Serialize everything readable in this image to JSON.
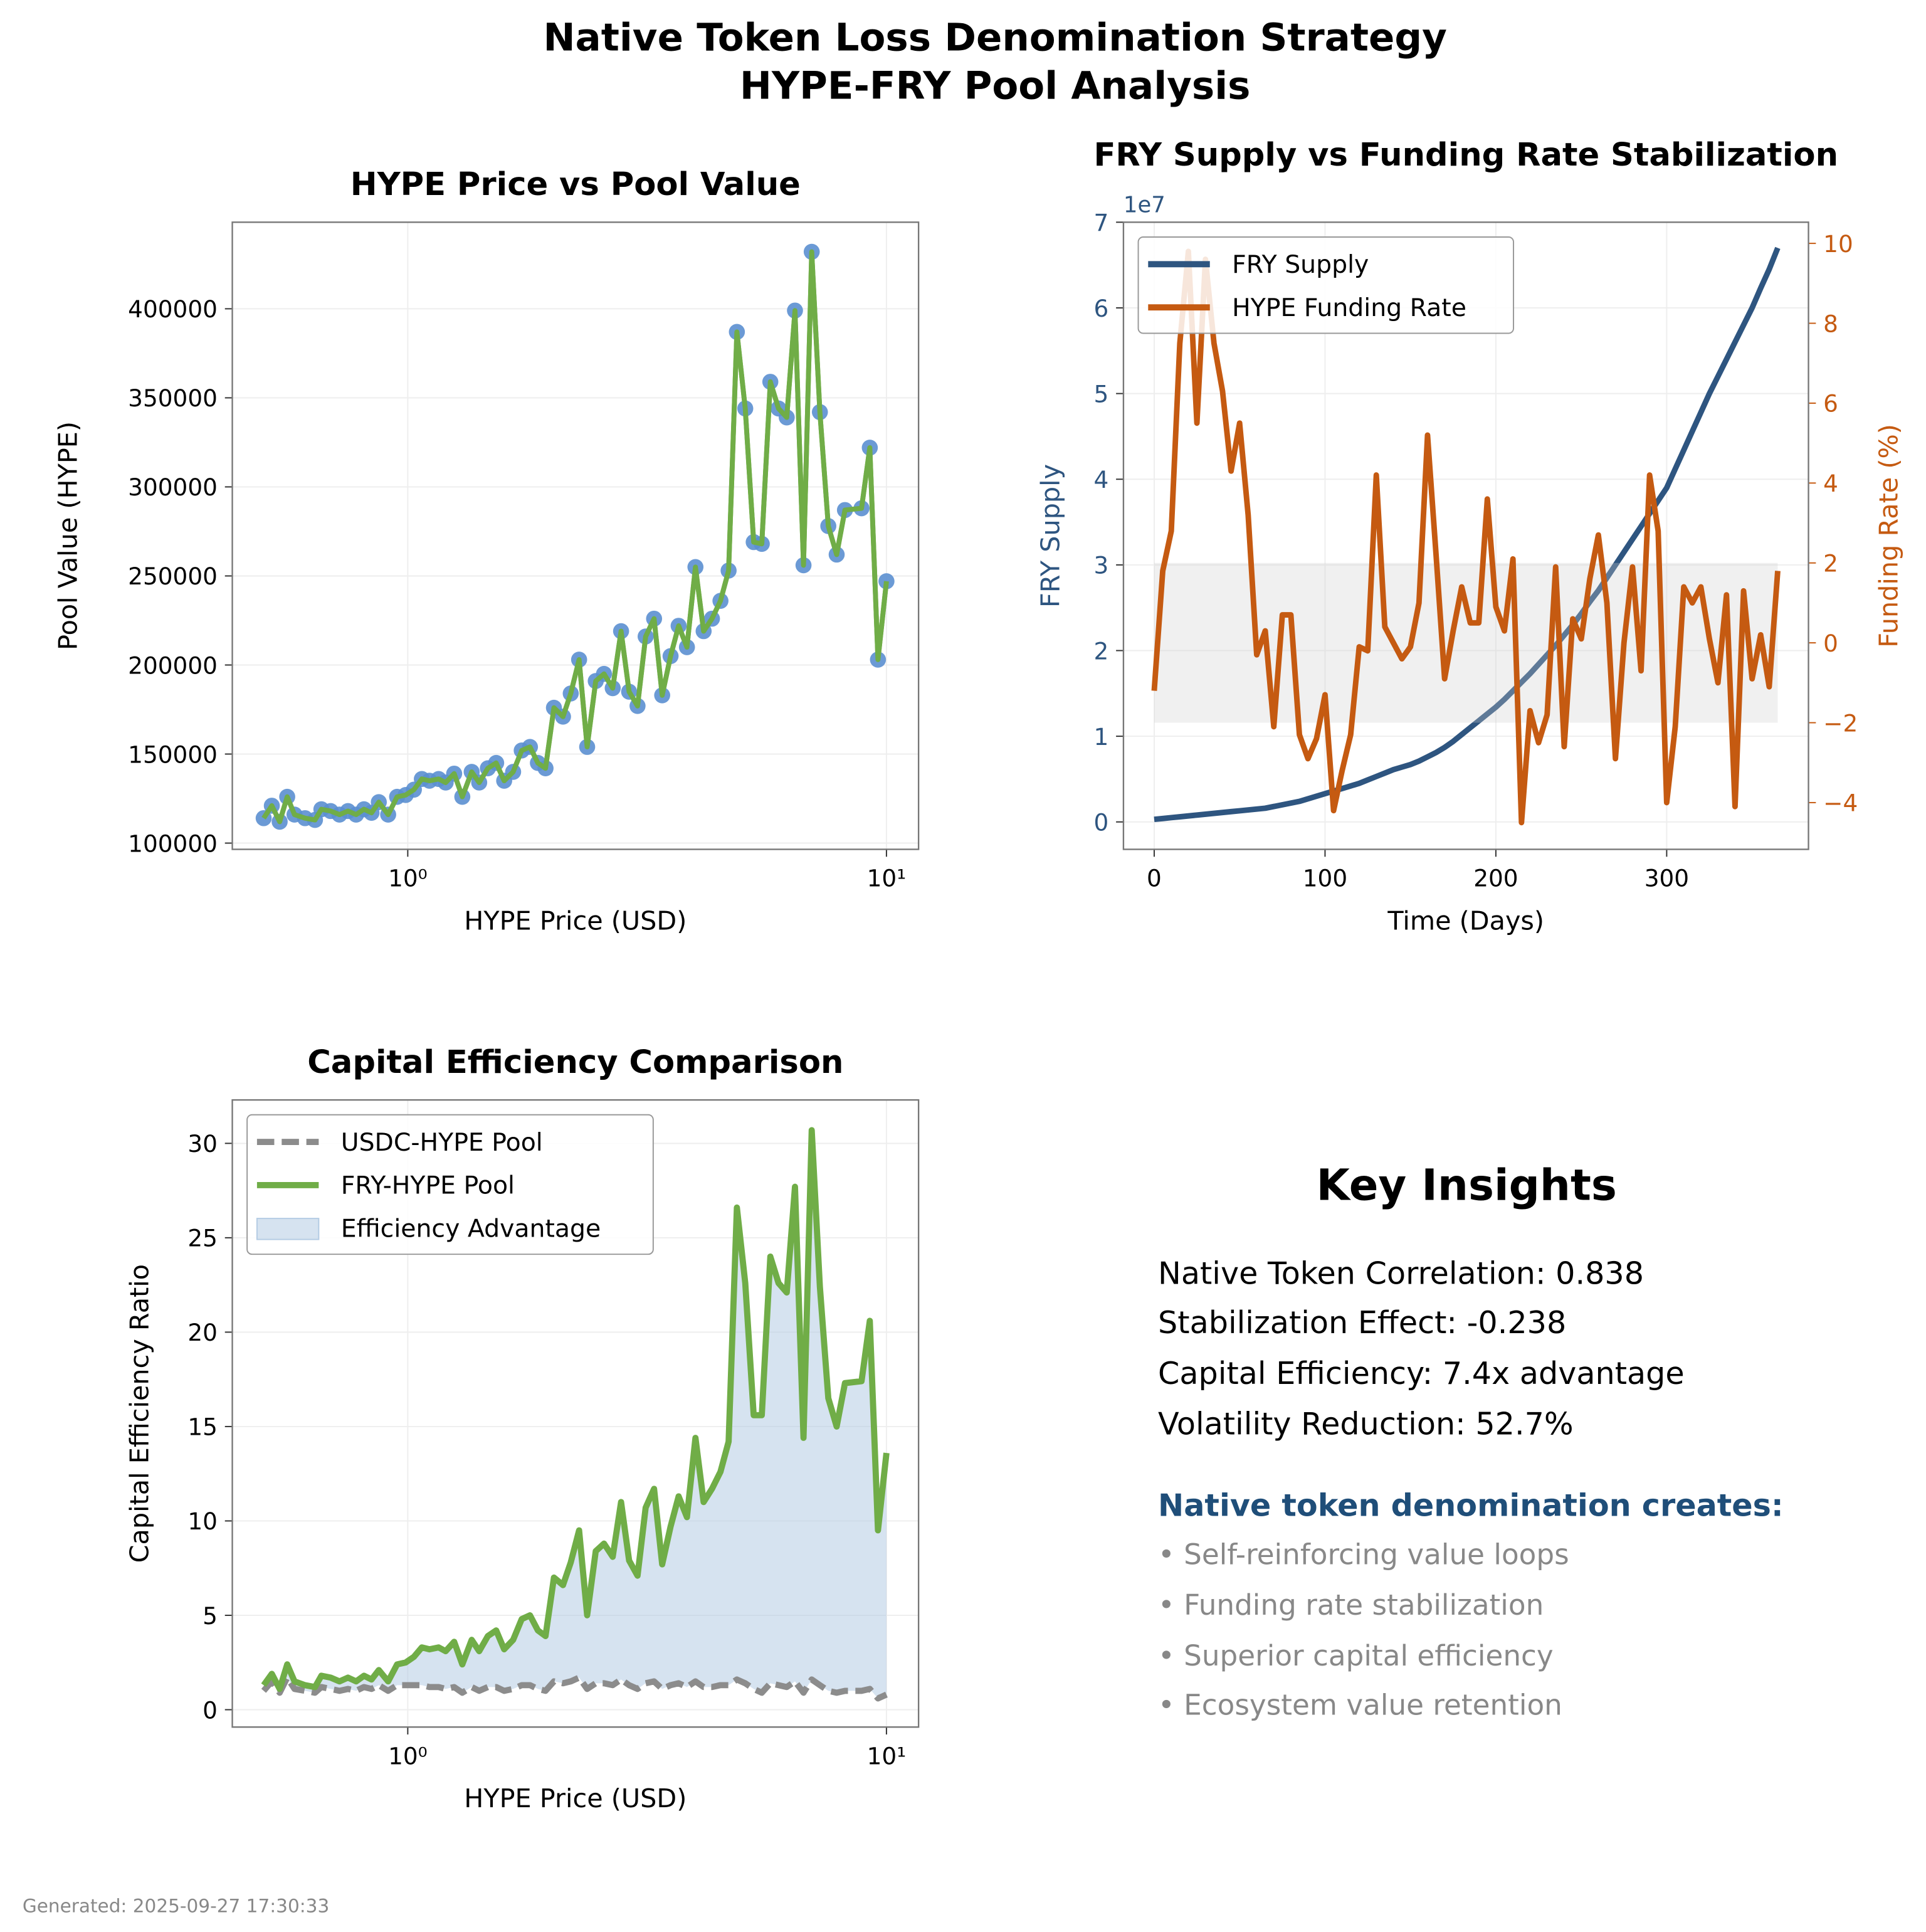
{
  "figure": {
    "title": "Native Token Loss Denomination Strategy",
    "subtitle": "HYPE-FRY Pool Analysis",
    "footer": "Generated: 2025-09-27 17:30:33"
  },
  "chart_data": [
    {
      "type": "scatter",
      "title": "HYPE Price vs Pool Value",
      "xlabel": "HYPE Price (USD)",
      "ylabel": "Pool Value (HYPE)",
      "xscale": "log",
      "xlim": [
        0.43,
        11.67
      ],
      "ylim": [
        96500,
        448600
      ],
      "xticks": [
        {
          "value": 1,
          "label": "10⁰"
        },
        {
          "value": 10,
          "label": "10¹"
        }
      ],
      "yticks": [
        100000,
        150000,
        200000,
        250000,
        300000,
        350000,
        400000
      ],
      "grid": true,
      "line_color": "#70ad47",
      "marker_color": "#5b8fd0",
      "x": [
        0.5,
        0.52,
        0.54,
        0.56,
        0.58,
        0.61,
        0.64,
        0.66,
        0.69,
        0.72,
        0.75,
        0.78,
        0.81,
        0.84,
        0.87,
        0.91,
        0.95,
        0.99,
        1.03,
        1.07,
        1.11,
        1.16,
        1.2,
        1.25,
        1.3,
        1.36,
        1.41,
        1.47,
        1.53,
        1.59,
        1.66,
        1.73,
        1.8,
        1.87,
        1.94,
        2.02,
        2.11,
        2.19,
        2.28,
        2.37,
        2.47,
        2.57,
        2.68,
        2.79,
        2.9,
        3.02,
        3.14,
        3.27,
        3.4,
        3.54,
        3.68,
        3.83,
        3.99,
        4.15,
        4.32,
        4.5,
        4.68,
        4.87,
        5.07,
        5.28,
        5.49,
        5.72,
        5.95,
        6.19,
        6.44,
        6.71,
        6.98,
        7.26,
        7.56,
        7.87,
        8.19,
        8.87,
        9.23,
        9.6,
        10.0
      ],
      "values": [
        114000,
        121000,
        112000,
        126000,
        116000,
        114000,
        113000,
        119000,
        118000,
        116000,
        118000,
        116000,
        119000,
        117000,
        123000,
        116000,
        126000,
        127000,
        130000,
        136000,
        135000,
        136000,
        134000,
        139000,
        126000,
        140000,
        134000,
        142000,
        145000,
        135000,
        140000,
        152000,
        154000,
        145000,
        142000,
        176000,
        171000,
        184000,
        203000,
        154000,
        191000,
        195000,
        187000,
        219000,
        185000,
        177000,
        216000,
        226000,
        183000,
        205000,
        222000,
        210000,
        255000,
        219000,
        226000,
        236000,
        253000,
        387000,
        344000,
        269000,
        268000,
        359000,
        344000,
        339000,
        399000,
        256000,
        432000,
        342000,
        278000,
        262000,
        287000,
        288000,
        322000,
        203000,
        247000
      ]
    },
    {
      "type": "dual_line",
      "title": "FRY Supply vs Funding Rate Stabilization",
      "xlabel": "Time (Days)",
      "ylabel": "FRY Supply",
      "y2label": "Funding Rate (%)",
      "y_offset_label": "1e7",
      "xlim": [
        -18,
        383
      ],
      "ylim": [
        -3200000,
        70000000
      ],
      "y2lim": [
        -5.17,
        10.53
      ],
      "xticks": [
        0,
        100,
        200,
        300
      ],
      "yticks": [
        0,
        {
          "value": 10000000,
          "label": "1"
        },
        {
          "value": 20000000,
          "label": "2"
        },
        {
          "value": 30000000,
          "label": "3"
        },
        {
          "value": 40000000,
          "label": "4"
        },
        {
          "value": 50000000,
          "label": "5"
        },
        {
          "value": 60000000,
          "label": "6"
        },
        {
          "value": 70000000,
          "label": "7"
        }
      ],
      "y2ticks": [
        {
          "value": -4,
          "label": "−4"
        },
        {
          "value": -2,
          "label": "−2"
        },
        0,
        2,
        4,
        6,
        8,
        10
      ],
      "y2_band": [
        -2,
        2
      ],
      "band_color": "#cccccc",
      "grid": true,
      "legend": "upper left",
      "x": [
        0,
        5,
        10,
        15,
        20,
        25,
        30,
        35,
        40,
        45,
        50,
        55,
        60,
        65,
        70,
        75,
        80,
        85,
        90,
        95,
        100,
        105,
        110,
        115,
        120,
        125,
        130,
        135,
        140,
        145,
        150,
        155,
        160,
        165,
        170,
        175,
        180,
        185,
        190,
        195,
        200,
        205,
        210,
        215,
        220,
        225,
        230,
        235,
        240,
        245,
        250,
        255,
        260,
        265,
        270,
        275,
        280,
        285,
        290,
        295,
        300,
        305,
        310,
        315,
        320,
        325,
        330,
        335,
        340,
        345,
        350,
        355,
        360,
        365
      ],
      "series": [
        {
          "name": "FRY Supply",
          "color": "#2e5580",
          "axis": "y",
          "values": [
            300000,
            400000,
            500000,
            600000,
            700000,
            800000,
            900000,
            1000000,
            1100000,
            1200000,
            1300000,
            1400000,
            1500000,
            1600000,
            1800000,
            2000000,
            2200000,
            2400000,
            2700000,
            3000000,
            3300000,
            3600000,
            3900000,
            4200000,
            4500000,
            4900000,
            5300000,
            5700000,
            6100000,
            6400000,
            6700000,
            7100000,
            7600000,
            8100000,
            8700000,
            9400000,
            10200000,
            11000000,
            11800000,
            12600000,
            13400000,
            14300000,
            15300000,
            16300000,
            17300000,
            18400000,
            19500000,
            20600000,
            21800000,
            23000000,
            24300000,
            25700000,
            27000000,
            28500000,
            30000000,
            31500000,
            33000000,
            34500000,
            36000000,
            37500000,
            39000000,
            41200000,
            43400000,
            45600000,
            47800000,
            50000000,
            52000000,
            54000000,
            56000000,
            58000000,
            60000000,
            62300000,
            64500000,
            67000000
          ]
        },
        {
          "name": "HYPE Funding Rate",
          "color": "#c55a11",
          "axis": "y2",
          "values": [
            -1.2,
            1.8,
            2.8,
            7.5,
            9.8,
            5.5,
            9.6,
            7.5,
            6.3,
            4.3,
            5.5,
            3.2,
            -0.3,
            0.3,
            -2.1,
            0.7,
            0.7,
            -2.3,
            -2.9,
            -2.4,
            -1.3,
            -4.2,
            -3.2,
            -2.3,
            -0.1,
            -0.2,
            4.2,
            0.4,
            0,
            -0.4,
            -0.1,
            1.0,
            5.2,
            2.2,
            -0.9,
            0.3,
            1.4,
            0.5,
            0.5,
            3.6,
            0.9,
            0.3,
            2.1,
            -4.5,
            -1.7,
            -2.5,
            -1.8,
            1.9,
            -2.6,
            0.6,
            0.1,
            1.6,
            2.7,
            1.0,
            -2.9,
            0,
            1.9,
            -0.7,
            4.2,
            2.8,
            -4.0,
            -2.1,
            1.4,
            1.0,
            1.4,
            0.1,
            -1.0,
            1.2,
            -4.1,
            1.3,
            -0.9,
            0.2,
            -1.1,
            1.8
          ]
        }
      ]
    },
    {
      "type": "area_comparison",
      "title": "Capital Efficiency Comparison",
      "xlabel": "HYPE Price (USD)",
      "ylabel": "Capital Efficiency Ratio",
      "xscale": "log",
      "xlim": [
        0.43,
        11.67
      ],
      "ylim": [
        -0.92,
        32.3
      ],
      "xticks": [
        {
          "value": 1,
          "label": "10⁰"
        },
        {
          "value": 10,
          "label": "10¹"
        }
      ],
      "yticks": [
        0,
        5,
        10,
        15,
        20,
        25,
        30
      ],
      "grid": true,
      "legend": "upper left",
      "x": [
        0.5,
        0.52,
        0.54,
        0.56,
        0.58,
        0.61,
        0.64,
        0.66,
        0.69,
        0.72,
        0.75,
        0.78,
        0.81,
        0.84,
        0.87,
        0.91,
        0.95,
        0.99,
        1.03,
        1.07,
        1.11,
        1.16,
        1.2,
        1.25,
        1.3,
        1.36,
        1.41,
        1.47,
        1.53,
        1.59,
        1.66,
        1.73,
        1.8,
        1.87,
        1.94,
        2.02,
        2.11,
        2.19,
        2.28,
        2.37,
        2.47,
        2.57,
        2.68,
        2.79,
        2.9,
        3.02,
        3.14,
        3.27,
        3.4,
        3.54,
        3.68,
        3.83,
        3.99,
        4.15,
        4.32,
        4.5,
        4.68,
        4.87,
        5.07,
        5.28,
        5.49,
        5.72,
        5.95,
        6.19,
        6.44,
        6.71,
        6.98,
        7.26,
        7.56,
        7.87,
        8.19,
        8.87,
        9.23,
        9.6,
        10.0
      ],
      "series": [
        {
          "name": "USDC-HYPE Pool",
          "color": "#8c8c8c",
          "dashed": true,
          "values": [
            1.0,
            1.5,
            0.9,
            1.7,
            1.1,
            1.0,
            0.9,
            1.2,
            1.1,
            1.0,
            1.1,
            1.0,
            1.2,
            1.1,
            1.3,
            1.0,
            1.3,
            1.3,
            1.3,
            1.3,
            1.2,
            1.2,
            1.1,
            1.2,
            0.9,
            1.2,
            1.0,
            1.2,
            1.2,
            1.0,
            1.1,
            1.3,
            1.3,
            1.1,
            1.0,
            1.5,
            1.4,
            1.5,
            1.7,
            1.1,
            1.4,
            1.4,
            1.3,
            1.6,
            1.3,
            1.1,
            1.4,
            1.5,
            1.1,
            1.3,
            1.4,
            1.2,
            1.5,
            1.2,
            1.2,
            1.3,
            1.3,
            1.6,
            1.4,
            1.1,
            0.9,
            1.4,
            1.3,
            1.2,
            1.5,
            0.9,
            1.6,
            1.3,
            1.0,
            0.9,
            1.0,
            1.0,
            1.1,
            0.6,
            0.8
          ]
        },
        {
          "name": "FRY-HYPE Pool",
          "color": "#70ad47",
          "values": [
            1.3,
            1.9,
            1.1,
            2.4,
            1.5,
            1.3,
            1.2,
            1.8,
            1.7,
            1.5,
            1.7,
            1.5,
            1.8,
            1.6,
            2.1,
            1.5,
            2.4,
            2.5,
            2.8,
            3.3,
            3.2,
            3.3,
            3.1,
            3.6,
            2.4,
            3.7,
            3.1,
            3.9,
            4.2,
            3.2,
            3.7,
            4.8,
            5.0,
            4.2,
            3.9,
            7.0,
            6.6,
            7.8,
            9.5,
            5.0,
            8.4,
            8.8,
            8.1,
            11.0,
            7.9,
            7.1,
            10.7,
            11.7,
            7.7,
            9.7,
            11.3,
            10.2,
            14.4,
            11.0,
            11.7,
            12.6,
            14.2,
            26.6,
            22.6,
            15.6,
            15.6,
            24.0,
            22.6,
            22.1,
            27.7,
            14.4,
            30.7,
            22.4,
            16.5,
            15.0,
            17.3,
            17.4,
            20.6,
            9.5,
            13.6
          ]
        }
      ],
      "fill": {
        "name": "Efficiency Advantage",
        "color": "#b4cce4"
      }
    }
  ],
  "insights": {
    "title": "Key Insights",
    "metrics": [
      "Native Token Correlation: 0.838",
      "Stabilization Effect: -0.238",
      "Capital Efficiency: 7.4x advantage",
      "Volatility Reduction: 52.7%"
    ],
    "heading": "Native token denomination creates:",
    "bullets": [
      "• Self-reinforcing value loops",
      "• Funding rate stabilization",
      "• Superior capital efficiency",
      "• Ecosystem value retention"
    ]
  }
}
